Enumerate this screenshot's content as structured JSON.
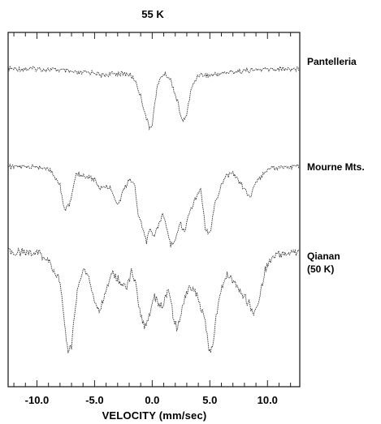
{
  "chart_data": {
    "type": "line",
    "title": "55 K",
    "xlabel": "VELOCITY (mm/sec)",
    "ylabel": "",
    "xlim": [
      -12.5,
      12.8
    ],
    "x_ticks": [
      -10,
      -5,
      0,
      5,
      10
    ],
    "x_tick_labels": [
      "-10.0",
      "-5.0",
      "0.0",
      "5.0",
      "10.0"
    ],
    "grid": false,
    "y_axis": "relative transmission, no scale",
    "series": [
      {
        "name": "Pantelleria",
        "label_lines": [
          "Pantelleria"
        ],
        "baseline": 1.0,
        "points": [
          [
            -12.5,
            1.0
          ],
          [
            -10,
            1.0
          ],
          [
            -8,
            0.99
          ],
          [
            -6.5,
            0.96
          ],
          [
            -5,
            0.97
          ],
          [
            -4.5,
            0.94
          ],
          [
            -3,
            0.96
          ],
          [
            -2,
            0.95
          ],
          [
            -1.5,
            0.9
          ],
          [
            -1,
            0.75
          ],
          [
            -0.5,
            0.55
          ],
          [
            -0.25,
            0.46
          ],
          [
            0,
            0.5
          ],
          [
            0.4,
            0.82
          ],
          [
            0.8,
            0.94
          ],
          [
            1.2,
            0.95
          ],
          [
            1.6,
            0.9
          ],
          [
            2.2,
            0.7
          ],
          [
            2.6,
            0.52
          ],
          [
            2.9,
            0.55
          ],
          [
            3.4,
            0.82
          ],
          [
            4,
            0.95
          ],
          [
            5,
            0.94
          ],
          [
            6,
            0.96
          ],
          [
            7.5,
            0.98
          ],
          [
            9,
            0.99
          ],
          [
            11,
            1.0
          ],
          [
            12.8,
            1.0
          ]
        ]
      },
      {
        "name": "Mourne Mts.",
        "label_lines": [
          "Mourne Mts."
        ],
        "baseline": 1.0,
        "points": [
          [
            -12.5,
            1.0
          ],
          [
            -10,
            1.0
          ],
          [
            -9,
            0.99
          ],
          [
            -8,
            0.85
          ],
          [
            -7.6,
            0.65
          ],
          [
            -7.2,
            0.68
          ],
          [
            -6.6,
            0.95
          ],
          [
            -5,
            0.9
          ],
          [
            -4.5,
            0.82
          ],
          [
            -4.2,
            0.85
          ],
          [
            -3.5,
            0.82
          ],
          [
            -3,
            0.68
          ],
          [
            -2.5,
            0.8
          ],
          [
            -2,
            0.9
          ],
          [
            -1.5,
            0.84
          ],
          [
            -1.2,
            0.6
          ],
          [
            -0.8,
            0.5
          ],
          [
            -0.5,
            0.38
          ],
          [
            -0.25,
            0.48
          ],
          [
            0.2,
            0.44
          ],
          [
            0.5,
            0.5
          ],
          [
            0.9,
            0.62
          ],
          [
            1.3,
            0.5
          ],
          [
            1.6,
            0.36
          ],
          [
            2,
            0.38
          ],
          [
            2.4,
            0.55
          ],
          [
            2.8,
            0.46
          ],
          [
            3.2,
            0.62
          ],
          [
            3.8,
            0.75
          ],
          [
            4.2,
            0.82
          ],
          [
            4.6,
            0.5
          ],
          [
            5,
            0.45
          ],
          [
            5.5,
            0.72
          ],
          [
            6.3,
            0.92
          ],
          [
            7,
            0.95
          ],
          [
            8,
            0.82
          ],
          [
            8.5,
            0.74
          ],
          [
            9,
            0.88
          ],
          [
            10,
            0.98
          ],
          [
            11,
            1.0
          ],
          [
            12.8,
            1.0
          ]
        ]
      },
      {
        "name": "Qianan (50 K)",
        "label_lines": [
          "Qianan",
          "(50 K)"
        ],
        "baseline": 1.0,
        "points": [
          [
            -12.5,
            1.0
          ],
          [
            -10,
            1.0
          ],
          [
            -9,
            0.93
          ],
          [
            -8,
            0.78
          ],
          [
            -7.6,
            0.45
          ],
          [
            -7.3,
            0.22
          ],
          [
            -7,
            0.28
          ],
          [
            -6.5,
            0.72
          ],
          [
            -6,
            0.86
          ],
          [
            -5.5,
            0.8
          ],
          [
            -5,
            0.62
          ],
          [
            -4.6,
            0.54
          ],
          [
            -4.2,
            0.64
          ],
          [
            -3.5,
            0.84
          ],
          [
            -2.8,
            0.78
          ],
          [
            -2.2,
            0.72
          ],
          [
            -1.8,
            0.86
          ],
          [
            -1.4,
            0.74
          ],
          [
            -1,
            0.5
          ],
          [
            -0.6,
            0.42
          ],
          [
            -0.2,
            0.52
          ],
          [
            0.2,
            0.66
          ],
          [
            0.6,
            0.58
          ],
          [
            1.0,
            0.6
          ],
          [
            1.4,
            0.74
          ],
          [
            1.8,
            0.52
          ],
          [
            2.2,
            0.4
          ],
          [
            2.6,
            0.58
          ],
          [
            3.2,
            0.74
          ],
          [
            3.8,
            0.68
          ],
          [
            4.2,
            0.58
          ],
          [
            4.6,
            0.46
          ],
          [
            5.0,
            0.22
          ],
          [
            5.3,
            0.32
          ],
          [
            5.8,
            0.66
          ],
          [
            6.5,
            0.84
          ],
          [
            7.2,
            0.76
          ],
          [
            7.8,
            0.68
          ],
          [
            8.4,
            0.6
          ],
          [
            8.8,
            0.52
          ],
          [
            9.2,
            0.6
          ],
          [
            9.8,
            0.86
          ],
          [
            10.5,
            0.97
          ],
          [
            12,
            1.0
          ],
          [
            12.8,
            1.0
          ]
        ]
      }
    ]
  }
}
